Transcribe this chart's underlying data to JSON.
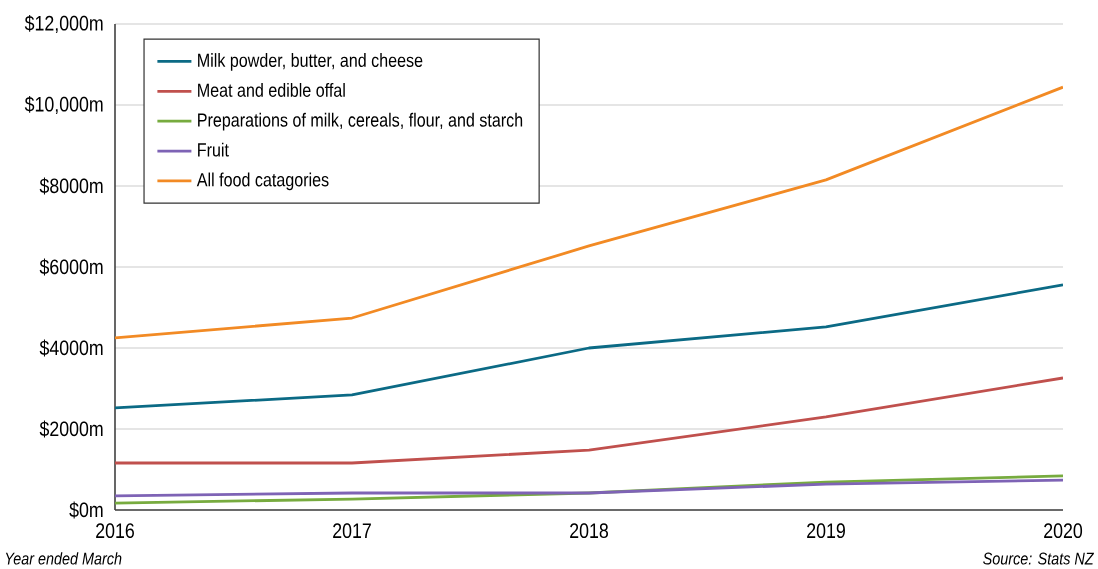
{
  "chart_data": {
    "type": "line",
    "x": [
      2016,
      2017,
      2018,
      2019,
      2020
    ],
    "xlim": [
      2016,
      2020
    ],
    "xticks": [
      2016,
      2017,
      2018,
      2019,
      2020
    ],
    "ylim": [
      0,
      12000
    ],
    "yticks": [
      {
        "value": 0,
        "label": "$0m"
      },
      {
        "value": 2000,
        "label": "$2000m"
      },
      {
        "value": 4000,
        "label": "$4000m"
      },
      {
        "value": 6000,
        "label": "$6000m"
      },
      {
        "value": 8000,
        "label": "$8000m"
      },
      {
        "value": 10000,
        "label": "$10,000m"
      },
      {
        "value": 12000,
        "label": "$12,000m"
      }
    ],
    "grid": "y",
    "legend": "top left",
    "series": [
      {
        "name": "Milk powder, butter, and cheese",
        "color": "#0b6a85",
        "values": [
          2520,
          2840,
          4000,
          4520,
          5560
        ]
      },
      {
        "name": "Meat and edible offal",
        "color": "#c0504d",
        "values": [
          1160,
          1160,
          1480,
          2300,
          3260
        ]
      },
      {
        "name": "Preparations of milk, cereals, flour, and starch",
        "color": "#77ab3f",
        "values": [
          170,
          270,
          420,
          690,
          840
        ]
      },
      {
        "name": "Fruit",
        "color": "#7e63b5",
        "values": [
          350,
          420,
          420,
          640,
          740
        ]
      },
      {
        "name": "All food catagories",
        "color": "#f28a24",
        "values": [
          4250,
          4740,
          6520,
          8150,
          10440
        ]
      }
    ],
    "annotations": [
      "Year ended March",
      "Source: Stats NZ"
    ]
  }
}
